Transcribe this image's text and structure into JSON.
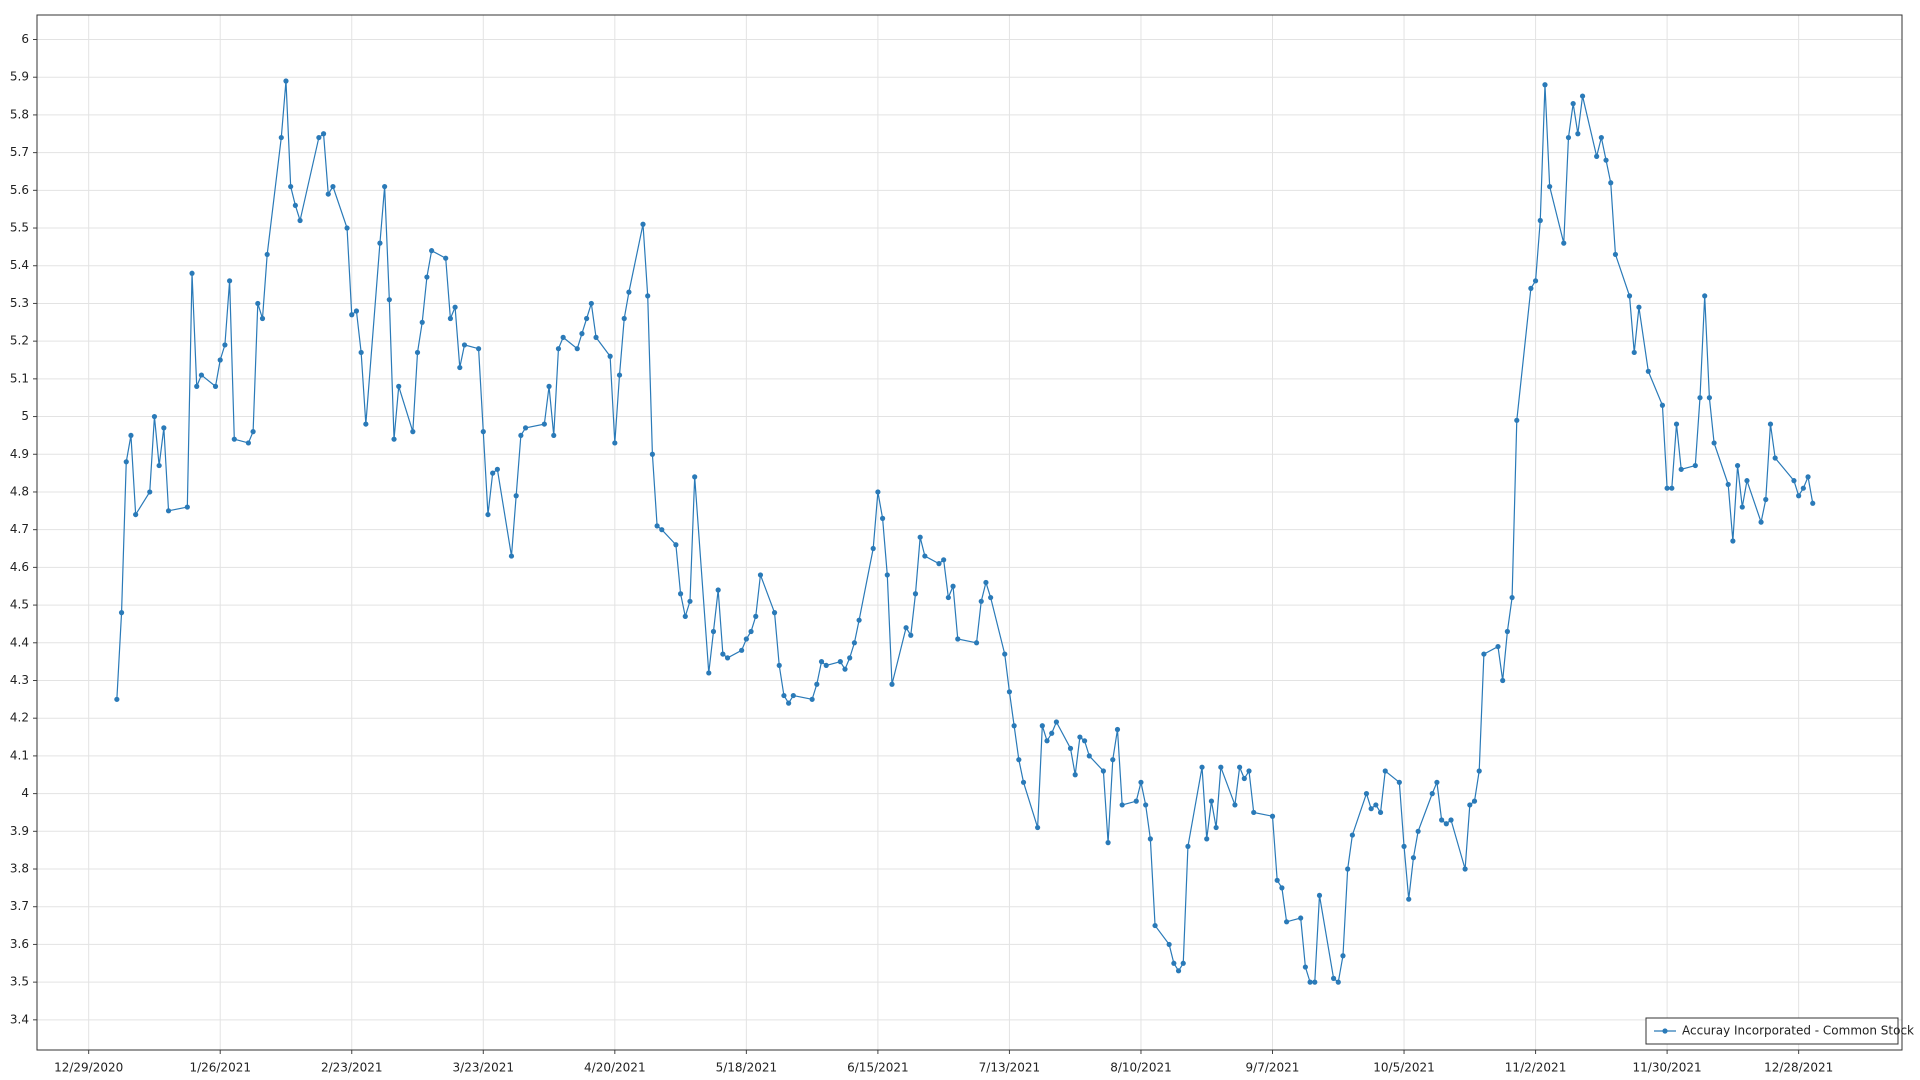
{
  "chart_data": {
    "type": "line",
    "x": [
      "1/4/2021",
      "1/5/2021",
      "1/6/2021",
      "1/7/2021",
      "1/8/2021",
      "1/11/2021",
      "1/12/2021",
      "1/13/2021",
      "1/14/2021",
      "1/15/2021",
      "1/19/2021",
      "1/20/2021",
      "1/21/2021",
      "1/22/2021",
      "1/25/2021",
      "1/26/2021",
      "1/27/2021",
      "1/28/2021",
      "1/29/2021",
      "2/1/2021",
      "2/2/2021",
      "2/3/2021",
      "2/4/2021",
      "2/5/2021",
      "2/8/2021",
      "2/9/2021",
      "2/10/2021",
      "2/11/2021",
      "2/12/2021",
      "2/16/2021",
      "2/17/2021",
      "2/18/2021",
      "2/19/2021",
      "2/22/2021",
      "2/23/2021",
      "2/24/2021",
      "2/25/2021",
      "2/26/2021",
      "3/1/2021",
      "3/2/2021",
      "3/3/2021",
      "3/4/2021",
      "3/5/2021",
      "3/8/2021",
      "3/9/2021",
      "3/10/2021",
      "3/11/2021",
      "3/12/2021",
      "3/15/2021",
      "3/16/2021",
      "3/17/2021",
      "3/18/2021",
      "3/19/2021",
      "3/22/2021",
      "3/23/2021",
      "3/24/2021",
      "3/25/2021",
      "3/26/2021",
      "3/29/2021",
      "3/30/2021",
      "3/31/2021",
      "4/1/2021",
      "4/5/2021",
      "4/6/2021",
      "4/7/2021",
      "4/8/2021",
      "4/9/2021",
      "4/12/2021",
      "4/13/2021",
      "4/14/2021",
      "4/15/2021",
      "4/16/2021",
      "4/19/2021",
      "4/20/2021",
      "4/21/2021",
      "4/22/2021",
      "4/23/2021",
      "4/26/2021",
      "4/27/2021",
      "4/28/2021",
      "4/29/2021",
      "4/30/2021",
      "5/3/2021",
      "5/4/2021",
      "5/5/2021",
      "5/6/2021",
      "5/7/2021",
      "5/10/2021",
      "5/11/2021",
      "5/12/2021",
      "5/13/2021",
      "5/14/2021",
      "5/17/2021",
      "5/18/2021",
      "5/19/2021",
      "5/20/2021",
      "5/21/2021",
      "5/24/2021",
      "5/25/2021",
      "5/26/2021",
      "5/27/2021",
      "5/28/2021",
      "6/1/2021",
      "6/2/2021",
      "6/3/2021",
      "6/4/2021",
      "6/7/2021",
      "6/8/2021",
      "6/9/2021",
      "6/10/2021",
      "6/11/2021",
      "6/14/2021",
      "6/15/2021",
      "6/16/2021",
      "6/17/2021",
      "6/18/2021",
      "6/21/2021",
      "6/22/2021",
      "6/23/2021",
      "6/24/2021",
      "6/25/2021",
      "6/28/2021",
      "6/29/2021",
      "6/30/2021",
      "7/1/2021",
      "7/2/2021",
      "7/6/2021",
      "7/7/2021",
      "7/8/2021",
      "7/9/2021",
      "7/12/2021",
      "7/13/2021",
      "7/14/2021",
      "7/15/2021",
      "7/16/2021",
      "7/19/2021",
      "7/20/2021",
      "7/21/2021",
      "7/22/2021",
      "7/23/2021",
      "7/26/2021",
      "7/27/2021",
      "7/28/2021",
      "7/29/2021",
      "7/30/2021",
      "8/2/2021",
      "8/3/2021",
      "8/4/2021",
      "8/5/2021",
      "8/6/2021",
      "8/9/2021",
      "8/10/2021",
      "8/11/2021",
      "8/12/2021",
      "8/13/2021",
      "8/16/2021",
      "8/17/2021",
      "8/18/2021",
      "8/19/2021",
      "8/20/2021",
      "8/23/2021",
      "8/24/2021",
      "8/25/2021",
      "8/26/2021",
      "8/27/2021",
      "8/30/2021",
      "8/31/2021",
      "9/1/2021",
      "9/2/2021",
      "9/3/2021",
      "9/7/2021",
      "9/8/2021",
      "9/9/2021",
      "9/10/2021",
      "9/13/2021",
      "9/14/2021",
      "9/15/2021",
      "9/16/2021",
      "9/17/2021",
      "9/20/2021",
      "9/21/2021",
      "9/22/2021",
      "9/23/2021",
      "9/24/2021",
      "9/27/2021",
      "9/28/2021",
      "9/29/2021",
      "9/30/2021",
      "10/1/2021",
      "10/4/2021",
      "10/5/2021",
      "10/6/2021",
      "10/7/2021",
      "10/8/2021",
      "10/11/2021",
      "10/12/2021",
      "10/13/2021",
      "10/14/2021",
      "10/15/2021",
      "10/18/2021",
      "10/19/2021",
      "10/20/2021",
      "10/21/2021",
      "10/22/2021",
      "10/25/2021",
      "10/26/2021",
      "10/27/2021",
      "10/28/2021",
      "10/29/2021",
      "11/1/2021",
      "11/2/2021",
      "11/3/2021",
      "11/4/2021",
      "11/5/2021",
      "11/8/2021",
      "11/9/2021",
      "11/10/2021",
      "11/11/2021",
      "11/12/2021",
      "11/15/2021",
      "11/16/2021",
      "11/17/2021",
      "11/18/2021",
      "11/19/2021",
      "11/22/2021",
      "11/23/2021",
      "11/24/2021",
      "11/26/2021",
      "11/29/2021",
      "11/30/2021",
      "12/1/2021",
      "12/2/2021",
      "12/3/2021",
      "12/6/2021",
      "12/7/2021",
      "12/8/2021",
      "12/9/2021",
      "12/10/2021",
      "12/13/2021",
      "12/14/2021",
      "12/15/2021",
      "12/16/2021",
      "12/17/2021",
      "12/20/2021",
      "12/21/2021",
      "12/22/2021",
      "12/23/2021",
      "12/27/2021",
      "12/28/2021",
      "12/29/2021",
      "12/30/2021",
      "12/31/2021"
    ],
    "series": [
      {
        "name": "Accuray Incorporated - Common Stock",
        "color": "#2a7ab8",
        "values": [
          4.25,
          4.48,
          4.88,
          4.95,
          4.74,
          4.8,
          5.0,
          4.87,
          4.97,
          4.75,
          4.76,
          5.38,
          5.08,
          5.11,
          5.08,
          5.15,
          5.19,
          5.36,
          4.94,
          4.93,
          4.96,
          5.3,
          5.26,
          5.43,
          5.74,
          5.89,
          5.61,
          5.56,
          5.52,
          5.74,
          5.75,
          5.59,
          5.61,
          5.5,
          5.27,
          5.28,
          5.17,
          4.98,
          5.46,
          5.61,
          5.31,
          4.94,
          5.08,
          4.96,
          5.17,
          5.25,
          5.37,
          5.44,
          5.42,
          5.26,
          5.29,
          5.13,
          5.19,
          5.18,
          4.96,
          4.74,
          4.85,
          4.86,
          4.63,
          4.79,
          4.95,
          4.97,
          4.98,
          5.08,
          4.95,
          5.18,
          5.21,
          5.18,
          5.22,
          5.26,
          5.3,
          5.21,
          5.16,
          4.93,
          5.11,
          5.26,
          5.33,
          5.51,
          5.32,
          4.9,
          4.71,
          4.7,
          4.66,
          4.53,
          4.47,
          4.51,
          4.84,
          4.32,
          4.43,
          4.54,
          4.37,
          4.36,
          4.38,
          4.41,
          4.43,
          4.47,
          4.58,
          4.48,
          4.34,
          4.26,
          4.24,
          4.26,
          4.25,
          4.29,
          4.35,
          4.34,
          4.35,
          4.33,
          4.36,
          4.4,
          4.46,
          4.65,
          4.8,
          4.73,
          4.58,
          4.29,
          4.44,
          4.42,
          4.53,
          4.68,
          4.63,
          4.61,
          4.62,
          4.52,
          4.55,
          4.41,
          4.4,
          4.51,
          4.56,
          4.52,
          4.37,
          4.27,
          4.18,
          4.09,
          4.03,
          3.91,
          4.18,
          4.14,
          4.16,
          4.19,
          4.12,
          4.05,
          4.15,
          4.14,
          4.1,
          4.06,
          3.87,
          4.09,
          4.17,
          3.97,
          3.98,
          4.03,
          3.97,
          3.88,
          3.65,
          3.6,
          3.55,
          3.53,
          3.55,
          3.86,
          4.07,
          3.88,
          3.98,
          3.91,
          4.07,
          3.97,
          4.07,
          4.04,
          4.06,
          3.95,
          3.94,
          3.77,
          3.75,
          3.66,
          3.67,
          3.54,
          3.5,
          3.5,
          3.73,
          3.51,
          3.5,
          3.57,
          3.8,
          3.89,
          4.0,
          3.96,
          3.97,
          3.95,
          4.06,
          4.03,
          3.86,
          3.72,
          3.83,
          3.9,
          4.0,
          4.03,
          3.93,
          3.92,
          3.93,
          3.8,
          3.97,
          3.98,
          4.06,
          4.37,
          4.39,
          4.3,
          4.43,
          4.52,
          4.99,
          5.34,
          5.36,
          5.52,
          5.88,
          5.61,
          5.46,
          5.74,
          5.83,
          5.75,
          5.85,
          5.69,
          5.74,
          5.68,
          5.62,
          5.43,
          5.32,
          5.17,
          5.29,
          5.12,
          5.03,
          4.81,
          4.81,
          4.98,
          4.86,
          4.87,
          5.05,
          5.32,
          5.05,
          4.93,
          4.82,
          4.67,
          4.87,
          4.76,
          4.83,
          4.72,
          4.78,
          4.98,
          4.89,
          4.83,
          4.79,
          4.81,
          4.84,
          4.77
        ]
      }
    ],
    "xlim": [
      "12/18/2020",
      "1/19/2022"
    ],
    "xticks": [
      "12/29/2020",
      "1/26/2021",
      "2/23/2021",
      "3/23/2021",
      "4/20/2021",
      "5/18/2021",
      "6/15/2021",
      "7/13/2021",
      "8/10/2021",
      "9/7/2021",
      "10/5/2021",
      "11/2/2021",
      "11/30/2021",
      "12/28/2021"
    ],
    "ylim": [
      3.32,
      6.065
    ],
    "yticks": [
      3.4,
      3.5,
      3.6,
      3.7,
      3.8,
      3.9,
      4,
      4.1,
      4.2,
      4.3,
      4.4,
      4.5,
      4.6,
      4.7,
      4.8,
      4.9,
      5,
      5.1,
      5.2,
      5.3,
      5.4,
      5.5,
      5.6,
      5.7,
      5.8,
      5.9,
      6
    ],
    "grid": true,
    "legend": "lower right"
  }
}
